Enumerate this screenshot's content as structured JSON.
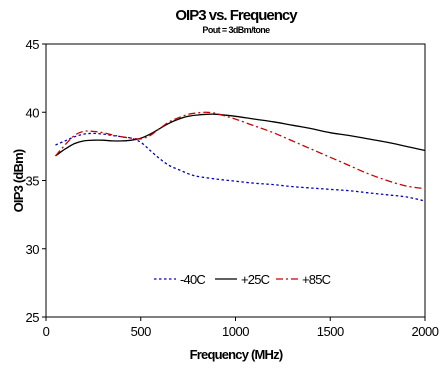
{
  "chart_data": {
    "type": "line",
    "title": "OIP3 vs. Frequency",
    "subtitle": "Pout = 3dBm/tone",
    "xlabel": "Frequency (MHz)",
    "ylabel": "OIP3 (dBm)",
    "xlim": [
      0,
      2000
    ],
    "ylim": [
      25,
      45
    ],
    "xticks": [
      0,
      500,
      1000,
      1500,
      2000
    ],
    "yticks": [
      25,
      30,
      35,
      40,
      45
    ],
    "grid": false,
    "legend_position": "bottom-center",
    "series": [
      {
        "name": "-40C",
        "color": "#0000cc",
        "dash": "dotted",
        "x": [
          50,
          100,
          150,
          200,
          250,
          300,
          350,
          400,
          450,
          500,
          550,
          600,
          650,
          700,
          750,
          800,
          900,
          1000,
          1100,
          1200,
          1300,
          1400,
          1500,
          1600,
          1700,
          1800,
          1900,
          2000
        ],
        "y": [
          37.6,
          37.9,
          38.2,
          38.4,
          38.45,
          38.4,
          38.3,
          38.2,
          38.1,
          37.8,
          37.2,
          36.6,
          36.1,
          35.8,
          35.5,
          35.3,
          35.1,
          34.95,
          34.8,
          34.7,
          34.55,
          34.45,
          34.35,
          34.25,
          34.1,
          33.95,
          33.8,
          33.5
        ]
      },
      {
        "name": "+25C",
        "color": "#000000",
        "dash": "solid",
        "x": [
          50,
          100,
          150,
          200,
          250,
          300,
          350,
          400,
          450,
          500,
          550,
          600,
          650,
          700,
          750,
          800,
          850,
          900,
          1000,
          1100,
          1200,
          1300,
          1400,
          1500,
          1600,
          1700,
          1800,
          1900,
          2000
        ],
        "y": [
          36.8,
          37.3,
          37.7,
          37.9,
          37.95,
          37.95,
          37.9,
          37.9,
          37.95,
          38.1,
          38.4,
          38.8,
          39.2,
          39.5,
          39.7,
          39.8,
          39.85,
          39.85,
          39.7,
          39.5,
          39.3,
          39.05,
          38.8,
          38.5,
          38.3,
          38.05,
          37.8,
          37.5,
          37.2
        ]
      },
      {
        "name": "+85C",
        "color": "#cc0000",
        "dash": "dashdot",
        "x": [
          50,
          100,
          150,
          200,
          250,
          300,
          350,
          400,
          450,
          500,
          550,
          600,
          650,
          700,
          750,
          800,
          850,
          900,
          950,
          1000,
          1100,
          1200,
          1300,
          1400,
          1500,
          1600,
          1700,
          1800,
          1900,
          2000
        ],
        "y": [
          36.8,
          37.6,
          38.3,
          38.6,
          38.6,
          38.5,
          38.35,
          38.2,
          38.1,
          38.05,
          38.3,
          38.8,
          39.3,
          39.6,
          39.85,
          39.95,
          40.0,
          39.9,
          39.7,
          39.5,
          39.0,
          38.5,
          37.9,
          37.3,
          36.7,
          36.1,
          35.5,
          35.0,
          34.6,
          34.4
        ]
      }
    ]
  }
}
